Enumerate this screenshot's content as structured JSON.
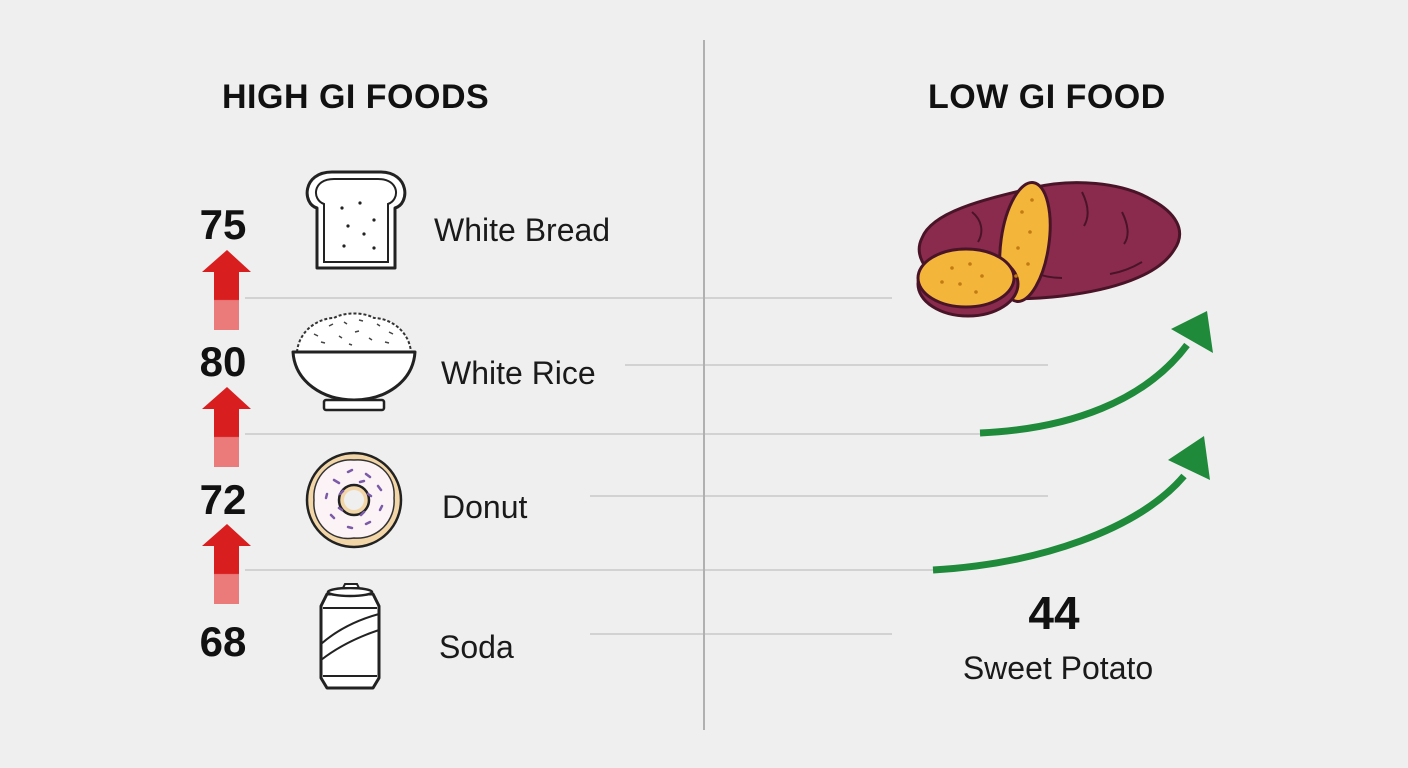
{
  "left": {
    "heading": "HIGH GI FOODS",
    "foods": [
      {
        "value": "75",
        "label": "White Bread",
        "icon": "bread-icon"
      },
      {
        "value": "80",
        "label": "White Rice",
        "icon": "rice-bowl-icon"
      },
      {
        "value": "72",
        "label": "Donut",
        "icon": "donut-icon"
      },
      {
        "value": "68",
        "label": "Soda",
        "icon": "soda-can-icon"
      }
    ]
  },
  "right": {
    "heading": "LOW GI FOOD",
    "value": "44",
    "label": "Sweet Potato",
    "icon": "sweet-potato-icon"
  },
  "colors": {
    "background": "#efefef",
    "up_arrow": "#d81e1e",
    "green_arrow": "#1e8a3a",
    "divider": "#b0b0b0",
    "guide_line": "#c8c8c8"
  }
}
